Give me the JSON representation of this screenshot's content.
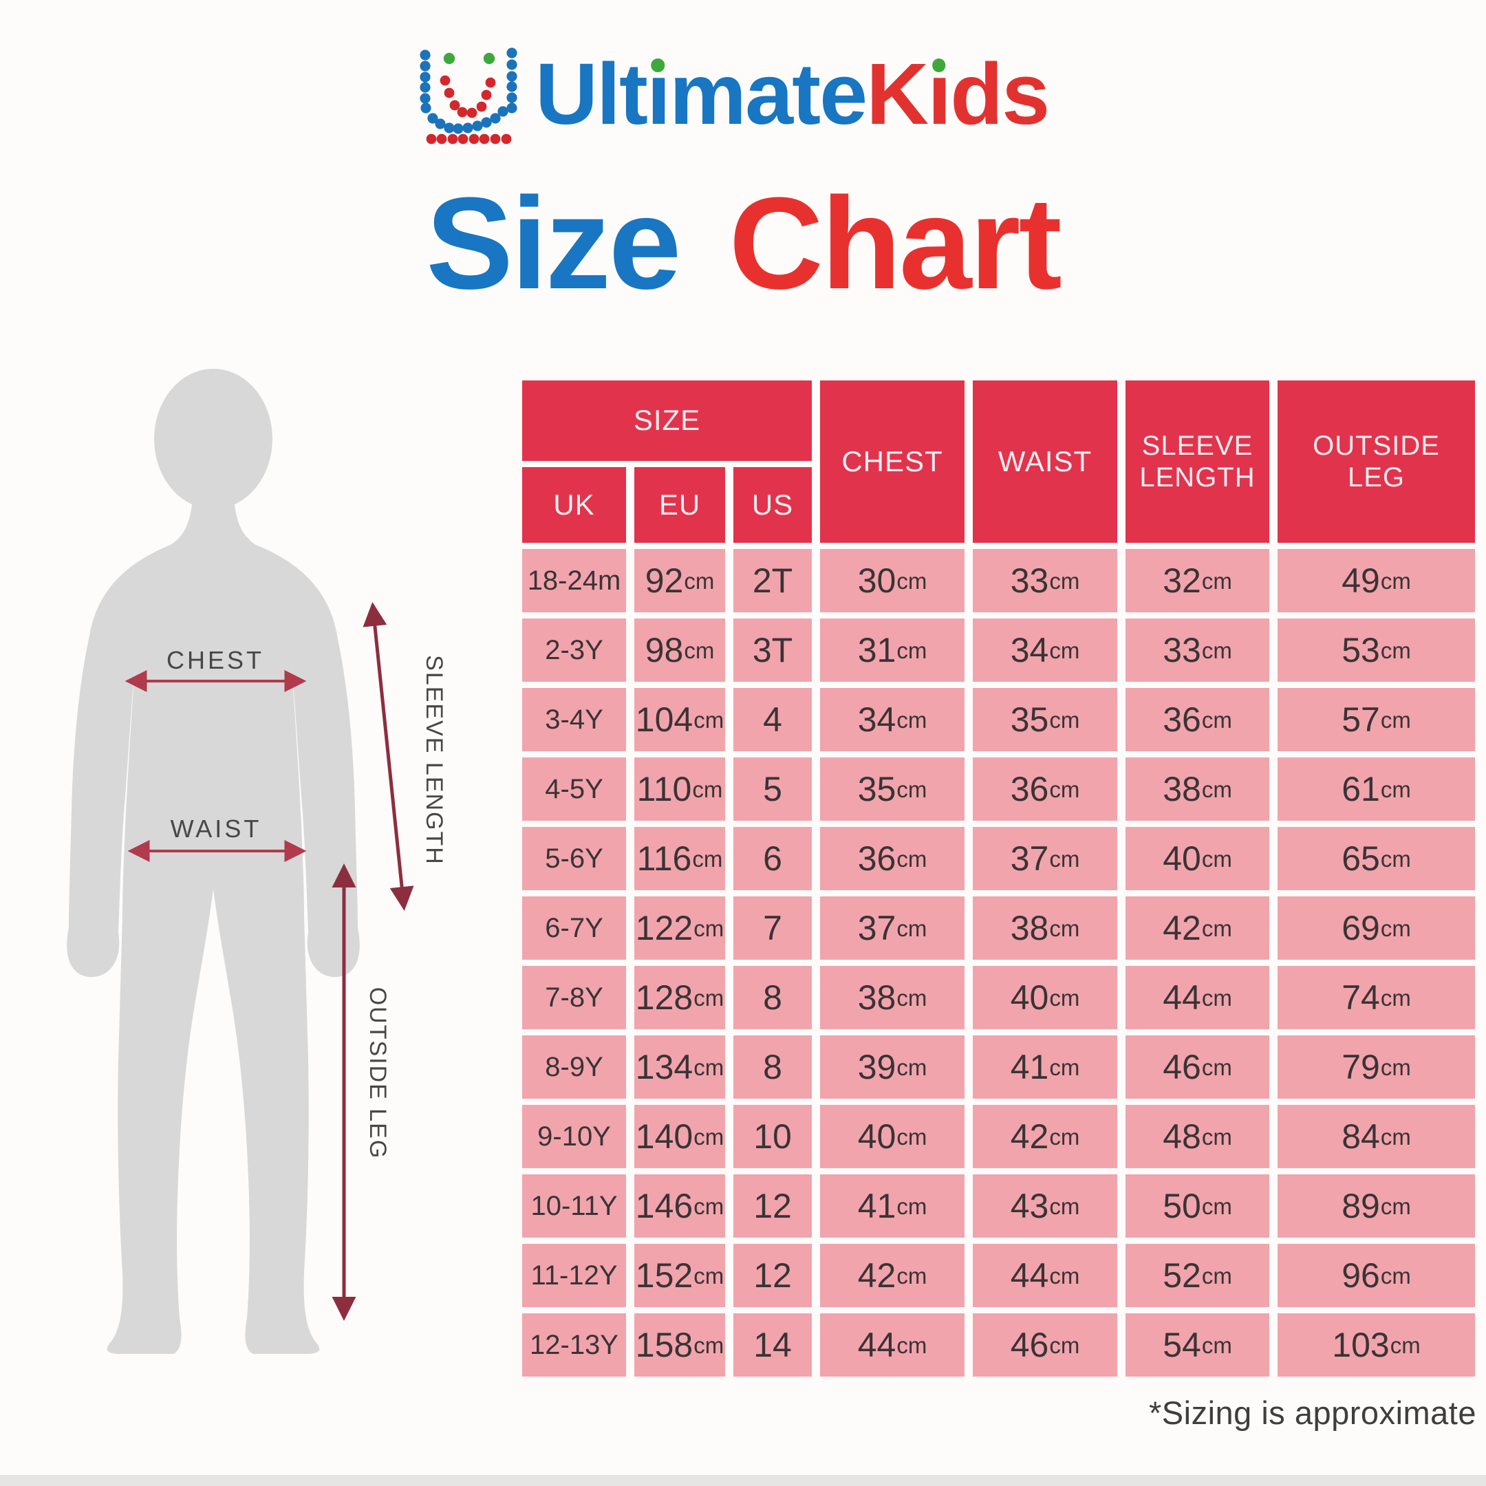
{
  "brand": {
    "word_primary": "Ultimate",
    "word_secondary": "Kids"
  },
  "title": {
    "word1": "Size",
    "word2": "Chart"
  },
  "figure": {
    "labels": {
      "chest": "CHEST",
      "waist": "WAIST",
      "sleeve_length": "SLEEVE LENGTH",
      "outside_leg": "OUTSIDE LEG"
    }
  },
  "table": {
    "headers": {
      "size": "SIZE",
      "uk": "UK",
      "eu": "EU",
      "us": "US",
      "chest": "CHEST",
      "waist": "WAIST",
      "sleeve_length": "SLEEVE\nLENGTH",
      "outside_leg": "OUTSIDE\nLEG"
    },
    "rows": [
      {
        "uk": "18-24m",
        "eu": "92cm",
        "us": "2T",
        "chest": "30cm",
        "waist": "33cm",
        "sleeve_length": "32cm",
        "outside_leg": "49cm"
      },
      {
        "uk": "2-3Y",
        "eu": "98cm",
        "us": "3T",
        "chest": "31cm",
        "waist": "34cm",
        "sleeve_length": "33cm",
        "outside_leg": "53cm"
      },
      {
        "uk": "3-4Y",
        "eu": "104cm",
        "us": "4",
        "chest": "34cm",
        "waist": "35cm",
        "sleeve_length": "36cm",
        "outside_leg": "57cm"
      },
      {
        "uk": "4-5Y",
        "eu": "110cm",
        "us": "5",
        "chest": "35cm",
        "waist": "36cm",
        "sleeve_length": "38cm",
        "outside_leg": "61cm"
      },
      {
        "uk": "5-6Y",
        "eu": "116cm",
        "us": "6",
        "chest": "36cm",
        "waist": "37cm",
        "sleeve_length": "40cm",
        "outside_leg": "65cm"
      },
      {
        "uk": "6-7Y",
        "eu": "122cm",
        "us": "7",
        "chest": "37cm",
        "waist": "38cm",
        "sleeve_length": "42cm",
        "outside_leg": "69cm"
      },
      {
        "uk": "7-8Y",
        "eu": "128cm",
        "us": "8",
        "chest": "38cm",
        "waist": "40cm",
        "sleeve_length": "44cm",
        "outside_leg": "74cm"
      },
      {
        "uk": "8-9Y",
        "eu": "134cm",
        "us": "8",
        "chest": "39cm",
        "waist": "41cm",
        "sleeve_length": "46cm",
        "outside_leg": "79cm"
      },
      {
        "uk": "9-10Y",
        "eu": "140cm",
        "us": "10",
        "chest": "40cm",
        "waist": "42cm",
        "sleeve_length": "48cm",
        "outside_leg": "84cm"
      },
      {
        "uk": "10-11Y",
        "eu": "146cm",
        "us": "12",
        "chest": "41cm",
        "waist": "43cm",
        "sleeve_length": "50cm",
        "outside_leg": "89cm"
      },
      {
        "uk": "11-12Y",
        "eu": "152cm",
        "us": "12",
        "chest": "42cm",
        "waist": "44cm",
        "sleeve_length": "52cm",
        "outside_leg": "96cm"
      },
      {
        "uk": "12-13Y",
        "eu": "158cm",
        "us": "14",
        "chest": "44cm",
        "waist": "46cm",
        "sleeve_length": "54cm",
        "outside_leg": "103cm"
      }
    ]
  },
  "footnote": "*Sizing is approximate",
  "colors": {
    "blue": "#1876C3",
    "red": "#E23230",
    "title_red": "#E8312E",
    "green": "#3DA93C",
    "crimson_header": "#E2334D",
    "pink_row": "#F1A4AC",
    "cell_text": "#3A3335",
    "header_text": "#FBEEF0",
    "silhouette_gray": "#D8D8D8",
    "arrow_red": "#B13A4C",
    "arrow_maroon": "#8D2E3F",
    "label_gray": "#474747",
    "footnote_gray": "#3E3E3E",
    "logo_dot_blue": "#1B74BB",
    "logo_dot_red": "#D5262C",
    "background": "#FDFCFA"
  }
}
